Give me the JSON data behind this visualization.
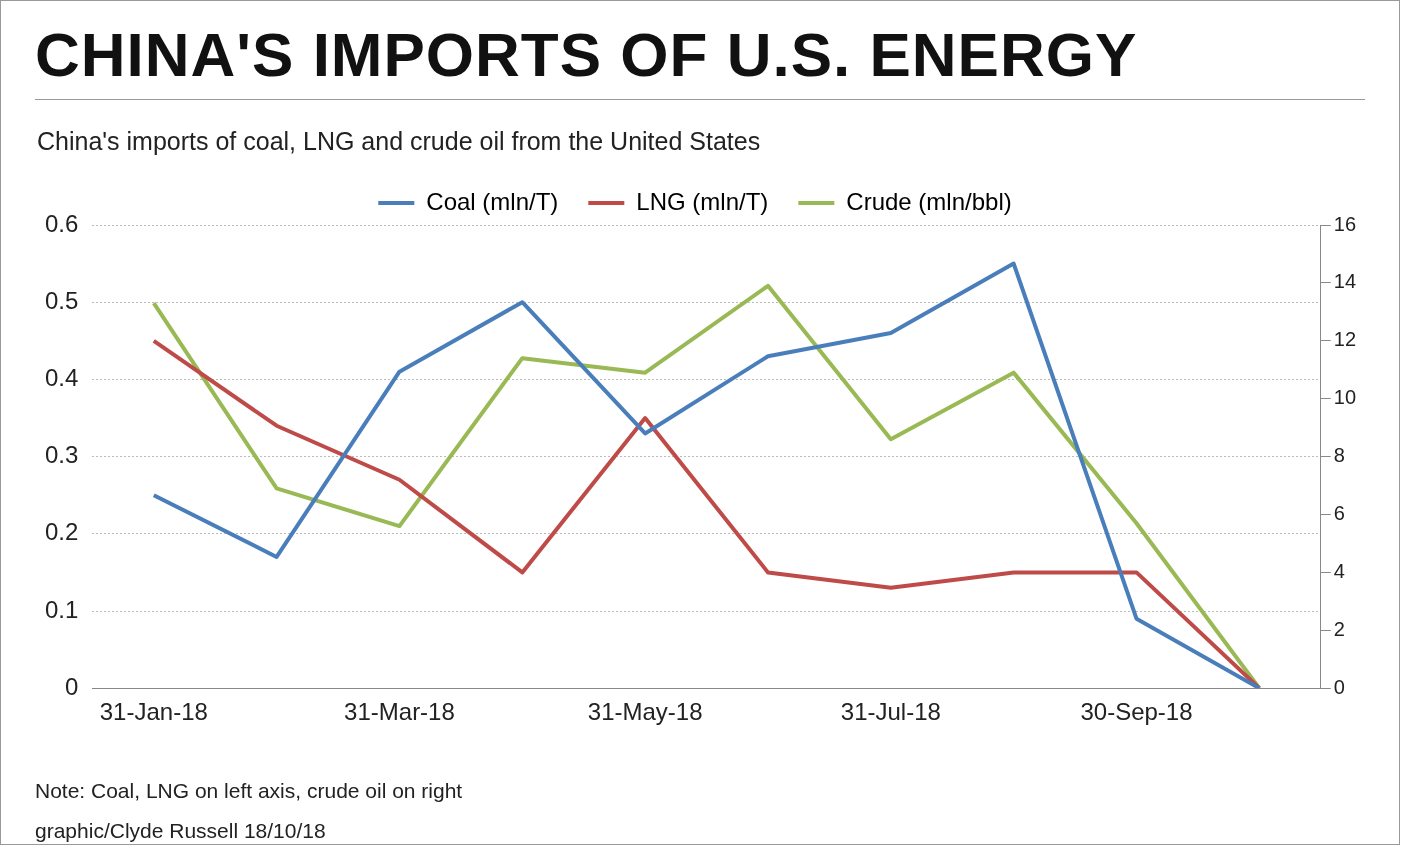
{
  "chart_data": {
    "type": "line",
    "title": "CHINA'S IMPORTS OF U.S. ENERGY",
    "subtitle": "China's imports of coal, LNG and crude oil from the United States",
    "categories": [
      "31-Jan-18",
      null,
      "31-Mar-18",
      null,
      "31-May-18",
      null,
      "31-Jul-18",
      null,
      "30-Sep-18",
      null
    ],
    "series": [
      {
        "name": "Coal (mln/T)",
        "color": "#4a7ebb",
        "values": [
          0.25,
          0.17,
          0.41,
          0.5,
          0.33,
          0.43,
          0.46,
          0.55,
          0.09,
          0
        ]
      },
      {
        "name": "LNG (mln/T)",
        "color": "#be4b48",
        "values": [
          0.45,
          0.34,
          0.27,
          0.15,
          0.35,
          0.15,
          0.13,
          0.15,
          0.15,
          0
        ]
      },
      {
        "name": "Crude (mln/bbl)",
        "color": "#98b954",
        "axis": "y2",
        "values": [
          13.3,
          6.9,
          5.6,
          11.4,
          10.9,
          13.9,
          8.6,
          10.9,
          5.7,
          0
        ]
      }
    ],
    "ylim": [
      0,
      0.6
    ],
    "yticks": [
      0,
      0.1,
      0.2,
      0.3,
      0.4,
      0.5,
      0.6
    ],
    "y2lim": [
      0,
      16
    ],
    "y2ticks": [
      0,
      2,
      4,
      6,
      8,
      10,
      12,
      14,
      16
    ],
    "grid": "y",
    "legend": "top",
    "marker": "none",
    "line_style": "solid",
    "annotations": [
      "Note: Coal, LNG on left axis, crude oil on right",
      "graphic/Clyde Russell 18/10/18"
    ]
  }
}
